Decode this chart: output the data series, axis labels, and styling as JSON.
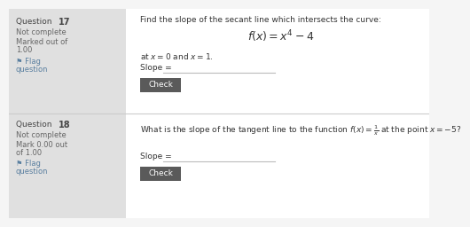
{
  "white_bg": "#f5f5f5",
  "content_bg": "#ffffff",
  "panel_bg": "#e0e0e0",
  "panel_border": "#cccccc",
  "q17_num": "17",
  "q17_status": "Not complete",
  "q17_mark1": "Marked out of",
  "q17_mark2": "1.00",
  "q17_flag": "⚑ Flag",
  "q17_question": "question",
  "q17_title": "Find the slope of the secant line which intersects the curve:",
  "q17_func": "$f(x) = x^4 - 4$",
  "q17_at": "at $x = 0$ and $x = 1$.",
  "q17_slope": "Slope =",
  "q18_num": "18",
  "q18_status": "Not complete",
  "q18_mark1": "Mark 0.00 out",
  "q18_mark2": "of 1.00",
  "q18_flag": "⚑ Flag",
  "q18_question": "question",
  "q18_title": "What is the slope of the tangent line to the function $f(x) = \\dfrac{1}{x}$ at the point $x = -5$?",
  "q18_slope": "Slope =",
  "check_color": "#5a5a5a",
  "check_text": "#ffffff",
  "label_color": "#444444",
  "status_color": "#666666",
  "text_color": "#333333",
  "flag_color": "#5a7fa0",
  "line_color": "#bbbbbb",
  "divider_color": "#cccccc"
}
